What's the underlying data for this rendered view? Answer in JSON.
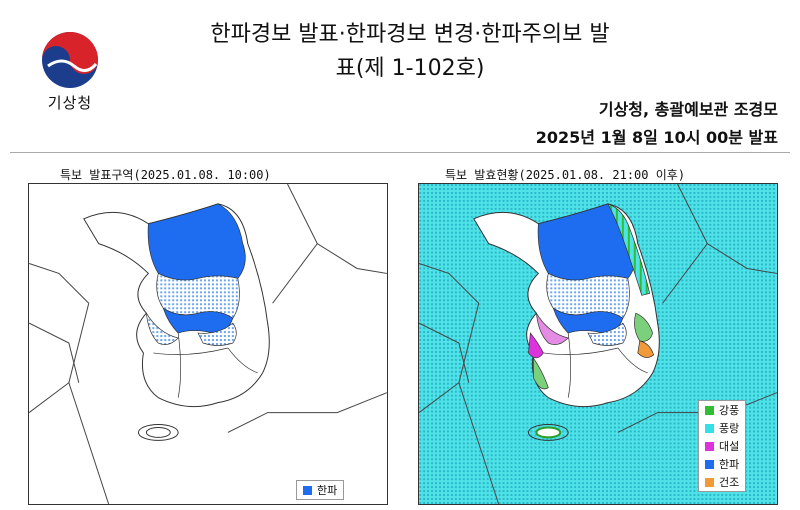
{
  "header": {
    "logo_text": "기상청",
    "title_line1": "한파경보 발표·한파경보 변경·한파주의보 발",
    "title_line2": "표(제 1-102호)",
    "issuer": "기상청, 총괄예보관 조경모",
    "issued": "2025년 1월 8일 10시 00분 발표"
  },
  "maps": {
    "left_title": "특보 발표구역(2025.01.08. 10:00)",
    "right_title": "특보 발효현황(2025.01.08. 21:00 이후)"
  },
  "legend_left": [
    {
      "label": "한파",
      "color": "#1e6cf0"
    }
  ],
  "legend_right": [
    {
      "label": "강풍",
      "color": "#33bb33"
    },
    {
      "label": "풍랑",
      "color": "#33e0e8"
    },
    {
      "label": "대설",
      "color": "#dd33dd"
    },
    {
      "label": "한파",
      "color": "#1e6cf0"
    },
    {
      "label": "건조",
      "color": "#f29a3a"
    }
  ],
  "colors": {
    "coldwave_warning": "#1e6cf0",
    "coldwave_advisory": "#6aa6f2",
    "sea_wave": "#4fe3e8",
    "land": "#ffffff"
  }
}
